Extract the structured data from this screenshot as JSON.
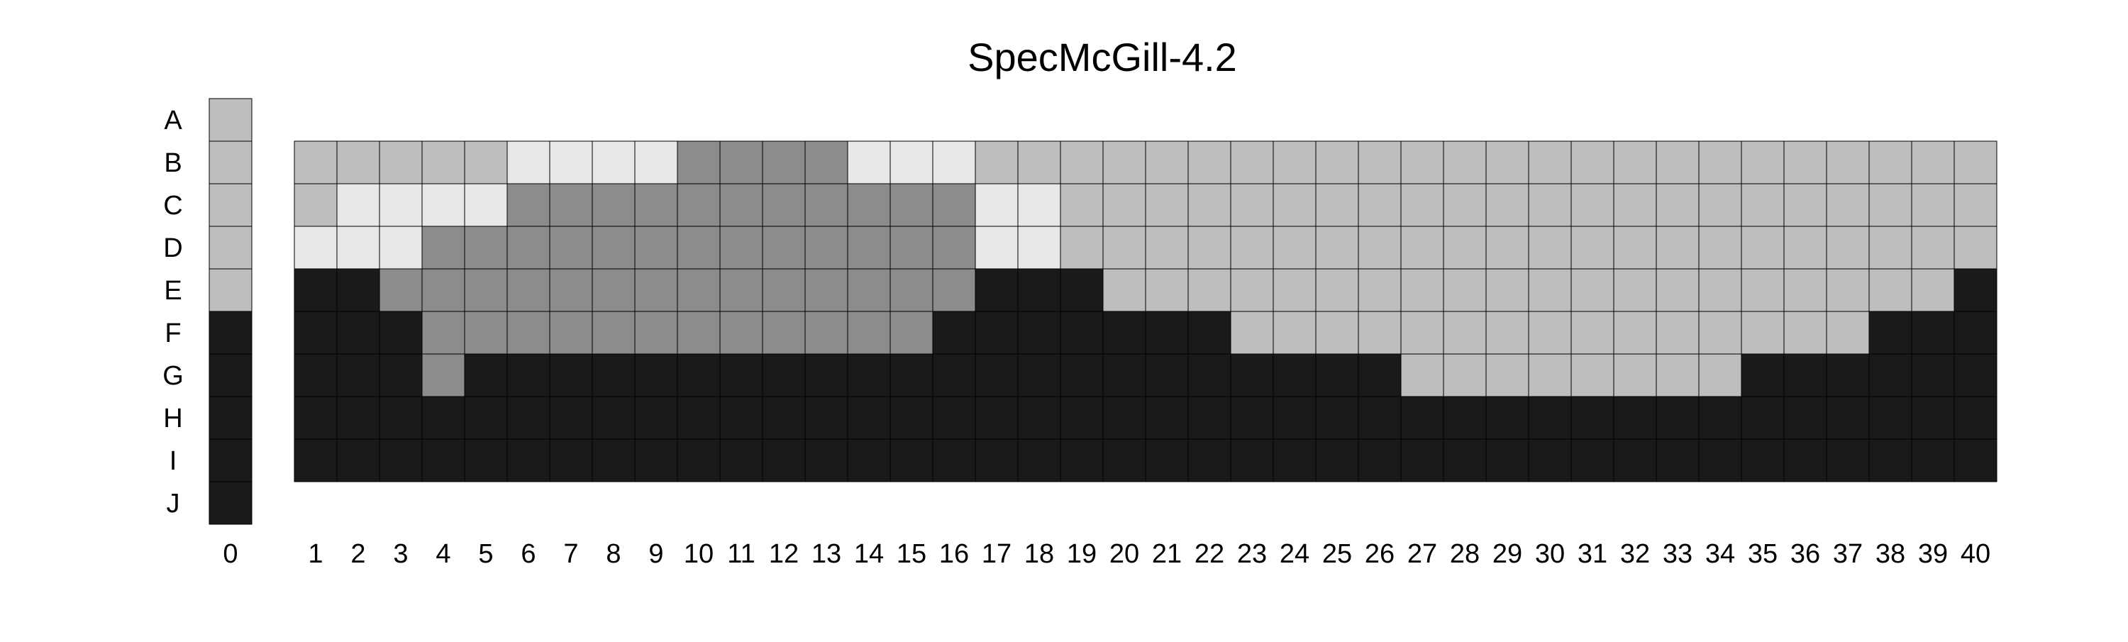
{
  "title": "SpecMcGill-4.2",
  "chart_data": {
    "type": "heatmap",
    "title": "SpecMcGill-4.2",
    "row_labels": [
      "A",
      "B",
      "C",
      "D",
      "E",
      "F",
      "G",
      "H",
      "I",
      "J"
    ],
    "legend_column": {
      "label": "0",
      "cells": [
        "#bebebe",
        "#bebebe",
        "#bebebe",
        "#bebebe",
        "#bebebe",
        "#1a1a1a",
        "#1a1a1a",
        "#1a1a1a",
        "#1a1a1a",
        "#1a1a1a"
      ]
    },
    "column_labels": [
      "1",
      "2",
      "3",
      "4",
      "5",
      "6",
      "7",
      "8",
      "9",
      "10",
      "11",
      "12",
      "13",
      "14",
      "15",
      "16",
      "17",
      "18",
      "19",
      "20",
      "21",
      "22",
      "23",
      "24",
      "25",
      "26",
      "27",
      "28",
      "29",
      "30",
      "31",
      "32",
      "33",
      "34",
      "35",
      "36",
      "37",
      "38",
      "39",
      "40"
    ],
    "grid_rows": [
      "B",
      "C",
      "D",
      "E",
      "F",
      "G",
      "H",
      "I"
    ],
    "palette": {
      "L": "#e8e8e8",
      "M": "#bebebe",
      "D": "#8c8c8c",
      "K": "#1a1a1a"
    },
    "grid": [
      "MMMMMLLLLDDDDLLLMMMMMMMMMMMMMMMMMMMMMMMM",
      "MLLLLDDDDDDDDDDDLLMMMMMMMMMMMMMMMMMMMMMM",
      "LLLDDDDDDDDDDDDDLLMMMMMMMMMMMMMMMMMMMMMM",
      "KKDDDDDDDDDDDDDDKKKMMMMMMMMMMMMMMMMMMMMK",
      "KKKDDDDDDDDDDDDKKKKKKKMMMMMMMMMMMMMMMKKK",
      "KKKDKKKKKKKKKKKKKKKKKKKKKKMMMMMMMMKKKKKK",
      "KKKKKKKKKKKKKKKKKKKKKKKKKKKKKKKKKKKKKKKK",
      "KKKKKKKKKKKKKKKKKKKKKKKKKKKKKKKKKKKKKKKK"
    ]
  }
}
